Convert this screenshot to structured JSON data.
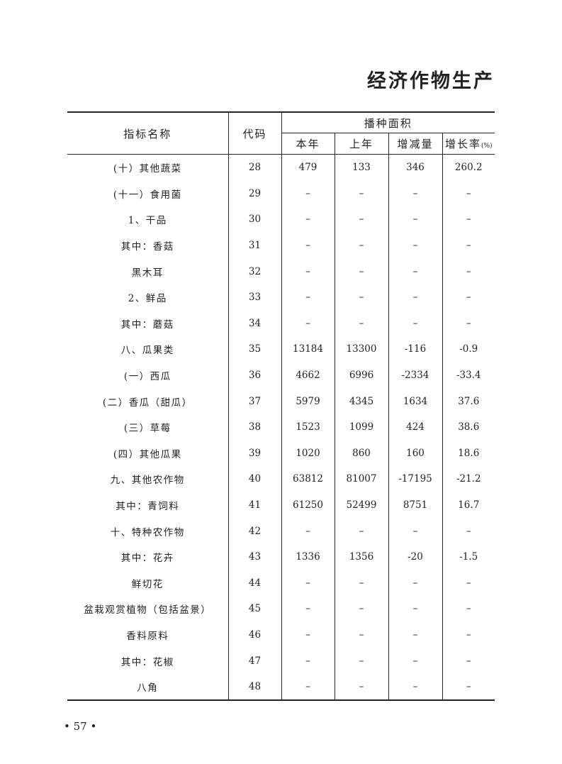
{
  "page_title": "经济作物生产",
  "table": {
    "headers": {
      "name": "指标名称",
      "code": "代码",
      "group": "播种面积",
      "this_year": "本年",
      "last_year": "上年",
      "change": "增减量",
      "growth": "增长率",
      "growth_unit": "(%)"
    },
    "rows": [
      {
        "name": "(十）其他蔬菜",
        "code": "28",
        "this_year": "479",
        "last_year": "133",
        "change": "346",
        "growth": "260.2"
      },
      {
        "name": "(十一）食用菌",
        "code": "29",
        "this_year": "–",
        "last_year": "–",
        "change": "–",
        "growth": "–"
      },
      {
        "name": "1、干品",
        "code": "30",
        "this_year": "–",
        "last_year": "–",
        "change": "–",
        "growth": "–"
      },
      {
        "name": "其中：香菇",
        "code": "31",
        "this_year": "–",
        "last_year": "–",
        "change": "–",
        "growth": "–"
      },
      {
        "name": "黑木耳",
        "code": "32",
        "this_year": "–",
        "last_year": "–",
        "change": "–",
        "growth": "–"
      },
      {
        "name": "2、鲜品",
        "code": "33",
        "this_year": "–",
        "last_year": "–",
        "change": "–",
        "growth": "–"
      },
      {
        "name": "其中：蘑菇",
        "code": "34",
        "this_year": "–",
        "last_year": "–",
        "change": "–",
        "growth": "–"
      },
      {
        "name": "八、瓜果类",
        "code": "35",
        "this_year": "13184",
        "last_year": "13300",
        "change": "-116",
        "growth": "-0.9"
      },
      {
        "name": "(一）西瓜",
        "code": "36",
        "this_year": "4662",
        "last_year": "6996",
        "change": "-2334",
        "growth": "-33.4"
      },
      {
        "name": "(二）香瓜（甜瓜）",
        "code": "37",
        "this_year": "5979",
        "last_year": "4345",
        "change": "1634",
        "growth": "37.6"
      },
      {
        "name": "(三）草莓",
        "code": "38",
        "this_year": "1523",
        "last_year": "1099",
        "change": "424",
        "growth": "38.6"
      },
      {
        "name": "(四）其他瓜果",
        "code": "39",
        "this_year": "1020",
        "last_year": "860",
        "change": "160",
        "growth": "18.6"
      },
      {
        "name": "九、其他农作物",
        "code": "40",
        "this_year": "63812",
        "last_year": "81007",
        "change": "-17195",
        "growth": "-21.2"
      },
      {
        "name": "其中：青饲料",
        "code": "41",
        "this_year": "61250",
        "last_year": "52499",
        "change": "8751",
        "growth": "16.7"
      },
      {
        "name": "十、特种农作物",
        "code": "42",
        "this_year": "–",
        "last_year": "–",
        "change": "–",
        "growth": "–"
      },
      {
        "name": "其中：花卉",
        "code": "43",
        "this_year": "1336",
        "last_year": "1356",
        "change": "-20",
        "growth": "-1.5"
      },
      {
        "name": "鲜切花",
        "code": "44",
        "this_year": "–",
        "last_year": "–",
        "change": "–",
        "growth": "–"
      },
      {
        "name": "盆栽观赏植物（包括盆景）",
        "code": "45",
        "this_year": "–",
        "last_year": "–",
        "change": "–",
        "growth": "–"
      },
      {
        "name": "香料原料",
        "code": "46",
        "this_year": "–",
        "last_year": "–",
        "change": "–",
        "growth": "–"
      },
      {
        "name": "其中：花椒",
        "code": "47",
        "this_year": "–",
        "last_year": "–",
        "change": "–",
        "growth": "–"
      },
      {
        "name": "八角",
        "code": "48",
        "this_year": "–",
        "last_year": "–",
        "change": "–",
        "growth": "–"
      }
    ]
  },
  "page_number": "• 57 •"
}
